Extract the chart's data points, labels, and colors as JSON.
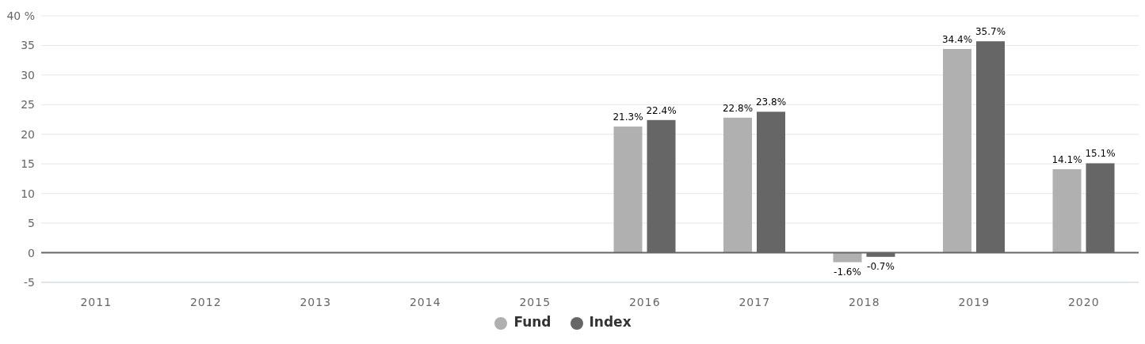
{
  "chart_data": {
    "type": "bar",
    "categories": [
      "2011",
      "2012",
      "2013",
      "2014",
      "2015",
      "2016",
      "2017",
      "2018",
      "2019",
      "2020"
    ],
    "series": [
      {
        "name": "Fund",
        "color": "#b0b0b0",
        "values": [
          null,
          null,
          null,
          null,
          null,
          21.3,
          22.8,
          -1.6,
          34.4,
          14.1
        ],
        "value_labels": [
          null,
          null,
          null,
          null,
          null,
          "21.3%",
          "22.8%",
          "-1.6%",
          "34.4%",
          "14.1%"
        ]
      },
      {
        "name": "Index",
        "color": "#666666",
        "values": [
          null,
          null,
          null,
          null,
          null,
          22.4,
          23.8,
          -0.7,
          35.7,
          15.1
        ],
        "value_labels": [
          null,
          null,
          null,
          null,
          null,
          "22.4%",
          "23.8%",
          "-0.7%",
          "35.7%",
          "15.1%"
        ]
      }
    ],
    "ylim": [
      -5,
      40
    ],
    "yticks": [
      -5,
      0,
      5,
      10,
      15,
      20,
      25,
      30,
      35,
      {
        "value": 40,
        "label": "40 %"
      }
    ],
    "ref_lines": [
      {
        "axis": "y",
        "value": 0,
        "color": "#666666"
      }
    ],
    "grid": "y",
    "legend": "bottom"
  }
}
